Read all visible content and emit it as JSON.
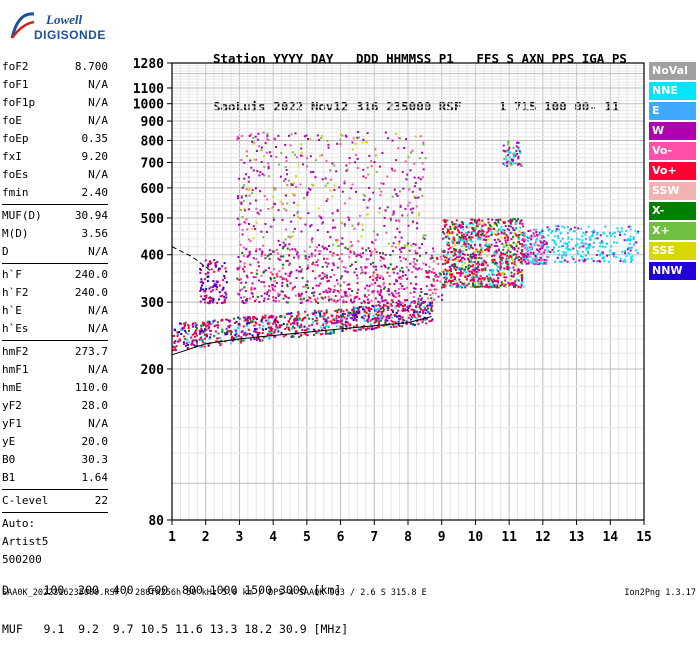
{
  "logo": {
    "line1": "Lowell",
    "line2": "DIGISONDE"
  },
  "header": {
    "line1": "Station YYYY DAY   DDD HHMMSS P1   FFS S AXN PPS IGA PS",
    "line2": "SaoLuis 2022 Nov12 316 235000 RSF     1 715 100 00- 11"
  },
  "params_group1": [
    {
      "key": "foF2",
      "value": "8.700"
    },
    {
      "key": "foF1",
      "value": "N/A"
    },
    {
      "key": "foF1p",
      "value": "N/A"
    },
    {
      "key": "foE",
      "value": "N/A"
    },
    {
      "key": "foEp",
      "value": "0.35"
    },
    {
      "key": "fxI",
      "value": "9.20"
    },
    {
      "key": "foEs",
      "value": "N/A"
    },
    {
      "key": "fmin",
      "value": "2.40"
    }
  ],
  "params_group2": [
    {
      "key": "MUF(D)",
      "value": "30.94"
    },
    {
      "key": "M(D)",
      "value": "3.56"
    },
    {
      "key": "D",
      "value": "N/A"
    }
  ],
  "params_group3": [
    {
      "key": "h`F",
      "value": "240.0"
    },
    {
      "key": "h`F2",
      "value": "240.0"
    },
    {
      "key": "h`E",
      "value": "N/A"
    },
    {
      "key": "h`Es",
      "value": "N/A"
    }
  ],
  "params_group4": [
    {
      "key": "hmF2",
      "value": "273.7"
    },
    {
      "key": "hmF1",
      "value": "N/A"
    },
    {
      "key": "hmE",
      "value": "110.0"
    },
    {
      "key": "yF2",
      "value": "28.0"
    },
    {
      "key": "yF1",
      "value": "N/A"
    },
    {
      "key": "yE",
      "value": "20.0"
    },
    {
      "key": "B0",
      "value": "30.3"
    },
    {
      "key": "B1",
      "value": "1.64"
    }
  ],
  "params_group5": [
    {
      "key": "C-level",
      "value": "22"
    }
  ],
  "auto": {
    "line1": "Auto:",
    "line2": "Artist5",
    "line3": "500200"
  },
  "legend": [
    {
      "label": "NoVal",
      "color": "#a0a0a0"
    },
    {
      "label": "NNE",
      "color": "#00e5ff"
    },
    {
      "label": "E",
      "color": "#3fa8ff"
    },
    {
      "label": "W",
      "color": "#b000b0"
    },
    {
      "label": "Vo-",
      "color": "#ff4fa8"
    },
    {
      "label": "Vo+",
      "color": "#ff0033"
    },
    {
      "label": "SSW",
      "color": "#f2b2b2"
    },
    {
      "label": "X-",
      "color": "#008000"
    },
    {
      "label": "X+",
      "color": "#6fc040"
    },
    {
      "label": "SSE",
      "color": "#d8d800"
    },
    {
      "label": "NNW",
      "color": "#2000d8"
    }
  ],
  "bottom": {
    "line1": "D     100  200  400  600  800 1000 1500 3000 [km]",
    "line2": "MUF   9.1  9.2  9.7 10.5 11.6 13.3 18.2 30.9 [MHz]"
  },
  "footer": {
    "left": "SAA0K_2022316235000.RSF / 280fx256h 50 kHz 5.0 km / DPS-4 SAA0K 903 / 2.6 S 315.8 E",
    "right": "Ion2Png 1.3.17"
  },
  "chart_data": {
    "type": "scatter",
    "title": "",
    "xlabel": "",
    "ylabel": "",
    "xlim": [
      1,
      15
    ],
    "ylim": [
      80,
      1280
    ],
    "y_scale": "log",
    "x_ticks": [
      1,
      2,
      3,
      4,
      5,
      6,
      7,
      8,
      9,
      10,
      11,
      12,
      13,
      14,
      15
    ],
    "y_ticks": [
      80,
      200,
      300,
      400,
      500,
      600,
      700,
      800,
      900,
      1000,
      1100,
      1280
    ],
    "grid": true,
    "clusters": [
      {
        "name": "F-trace",
        "x": [
          1.0,
          8.7
        ],
        "y": [
          225,
          305
        ],
        "weight": [
          [
            "#ff0033",
            0.35
          ],
          [
            "#b000b0",
            0.25
          ],
          [
            "#008000",
            0.15
          ],
          [
            "#2000d8",
            0.15
          ],
          [
            "#00e5ff",
            0.1
          ]
        ],
        "count": 900
      },
      {
        "name": "spread-low",
        "x": [
          2.9,
          9.0
        ],
        "y": [
          300,
          420
        ],
        "weight": [
          [
            "#b000b0",
            0.5
          ],
          [
            "#ff4fa8",
            0.3
          ],
          [
            "#008000",
            0.1
          ],
          [
            "#ff0033",
            0.1
          ]
        ],
        "count": 650
      },
      {
        "name": "spread-high",
        "x": [
          2.9,
          8.5
        ],
        "y": [
          420,
          850
        ],
        "weight": [
          [
            "#b000b0",
            0.5
          ],
          [
            "#ff4fa8",
            0.25
          ],
          [
            "#d8d800",
            0.1
          ],
          [
            "#6fc040",
            0.15
          ]
        ],
        "count": 480
      },
      {
        "name": "F2-main",
        "x": [
          9.0,
          11.4
        ],
        "y": [
          330,
          500
        ],
        "weight": [
          [
            "#ff0033",
            0.3
          ],
          [
            "#b000b0",
            0.3
          ],
          [
            "#008000",
            0.15
          ],
          [
            "#d8d800",
            0.1
          ],
          [
            "#00e5ff",
            0.15
          ]
        ],
        "count": 900
      },
      {
        "name": "F2-high",
        "x": [
          11.4,
          12.1
        ],
        "y": [
          380,
          470
        ],
        "weight": [
          [
            "#b000b0",
            0.4
          ],
          [
            "#00e5ff",
            0.3
          ],
          [
            "#ff4fa8",
            0.3
          ]
        ],
        "count": 160
      },
      {
        "name": "F2-tail",
        "x": [
          12.1,
          14.8
        ],
        "y": [
          385,
          480
        ],
        "weight": [
          [
            "#00e5ff",
            0.6
          ],
          [
            "#3fa8ff",
            0.2
          ],
          [
            "#b000b0",
            0.2
          ]
        ],
        "count": 240
      },
      {
        "name": "upper-patch",
        "x": [
          10.8,
          11.4
        ],
        "y": [
          690,
          800
        ],
        "weight": [
          [
            "#b000b0",
            0.5
          ],
          [
            "#6fc040",
            0.3
          ],
          [
            "#00e5ff",
            0.2
          ]
        ],
        "count": 60
      },
      {
        "name": "low-left",
        "x": [
          1.8,
          2.6
        ],
        "y": [
          300,
          390
        ],
        "weight": [
          [
            "#2000d8",
            0.4
          ],
          [
            "#b000b0",
            0.4
          ],
          [
            "#ff0033",
            0.2
          ]
        ],
        "count": 110
      }
    ],
    "profile_curve": {
      "x": [
        1.0,
        2.0,
        3.0,
        4.0,
        5.0,
        6.0,
        7.0,
        8.0,
        8.7
      ],
      "y": [
        218,
        233,
        240,
        245,
        250,
        255,
        260,
        265,
        275
      ]
    },
    "dashed_curve": {
      "x": [
        1.0,
        1.6,
        2.2
      ],
      "y": [
        420,
        395,
        360
      ]
    }
  }
}
